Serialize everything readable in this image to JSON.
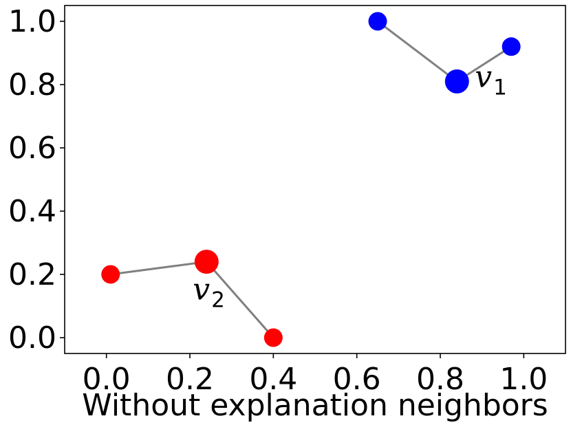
{
  "chart_data": {
    "type": "scatter",
    "title": "",
    "xlabel": "Without explanation neighbors",
    "ylabel": "",
    "xlim": [
      -0.1,
      1.1
    ],
    "ylim": [
      -0.05,
      1.05
    ],
    "x_ticks": [
      "0.0",
      "0.2",
      "0.4",
      "0.6",
      "0.8",
      "1.0"
    ],
    "y_ticks": [
      "0.0",
      "0.2",
      "0.4",
      "0.6",
      "0.8",
      "1.0"
    ],
    "grid": false,
    "legend": "none",
    "groups": [
      {
        "color": "#0000ff",
        "center": {
          "x": 0.84,
          "y": 0.81,
          "label": "v",
          "subscript": "1"
        },
        "neighbors": [
          {
            "x": 0.65,
            "y": 1.0
          },
          {
            "x": 0.97,
            "y": 0.92
          }
        ]
      },
      {
        "color": "#ff0000",
        "center": {
          "x": 0.24,
          "y": 0.24,
          "label": "v",
          "subscript": "2"
        },
        "neighbors": [
          {
            "x": 0.01,
            "y": 0.2
          },
          {
            "x": 0.4,
            "y": 0.0
          }
        ]
      }
    ],
    "edge_color": "#808080"
  }
}
